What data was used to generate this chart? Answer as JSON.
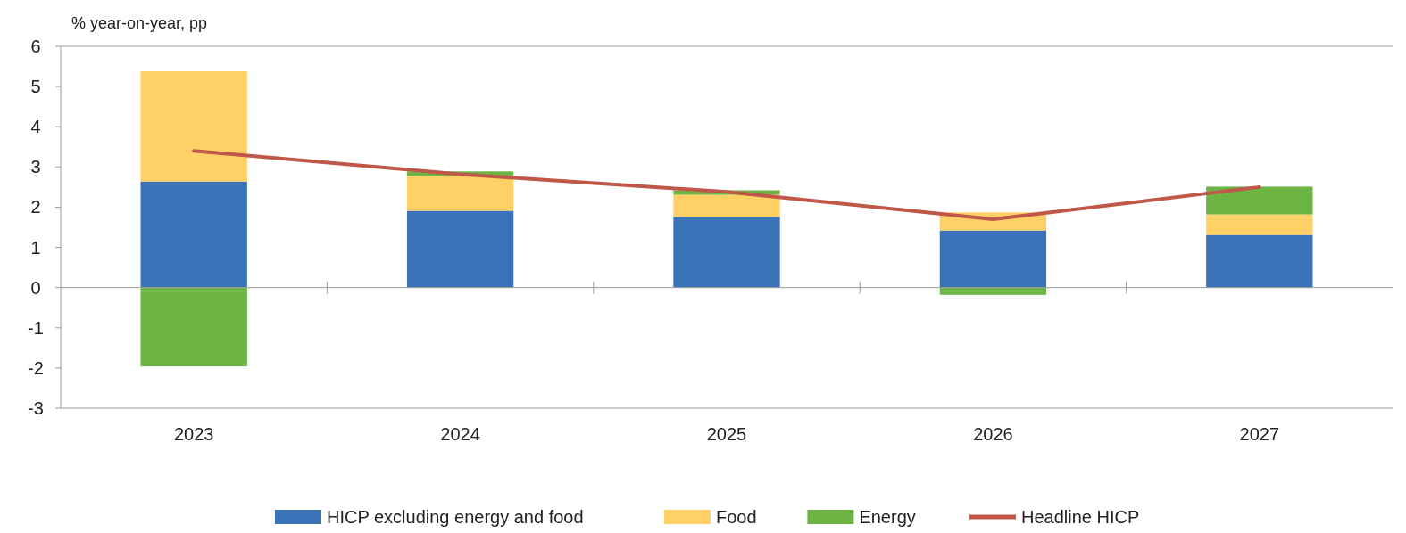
{
  "chart_data": {
    "type": "bar",
    "stacked": true,
    "ylabel": "% year-on-year, pp",
    "categories": [
      "2023",
      "2024",
      "2025",
      "2026",
      "2027"
    ],
    "series": [
      {
        "name": "HICP excluding energy and food",
        "color": "#3a73b8",
        "values": [
          2.64,
          1.91,
          1.76,
          1.42,
          1.31
        ]
      },
      {
        "name": "Food",
        "color": "#fed065",
        "values": [
          2.74,
          0.87,
          0.55,
          0.45,
          0.51
        ]
      },
      {
        "name": "Energy",
        "color": "#6cb545",
        "values": [
          -1.96,
          0.11,
          0.11,
          -0.18,
          0.69
        ]
      },
      {
        "name": "Headline HICP",
        "type": "line",
        "color": "#c0584a",
        "values": [
          3.4,
          2.82,
          2.38,
          1.7,
          2.5
        ]
      }
    ],
    "ylim": [
      -3,
      6
    ],
    "yticks": [
      -3,
      -2,
      -1,
      0,
      1,
      2,
      3,
      4,
      5,
      6
    ],
    "legend": "bottom"
  }
}
